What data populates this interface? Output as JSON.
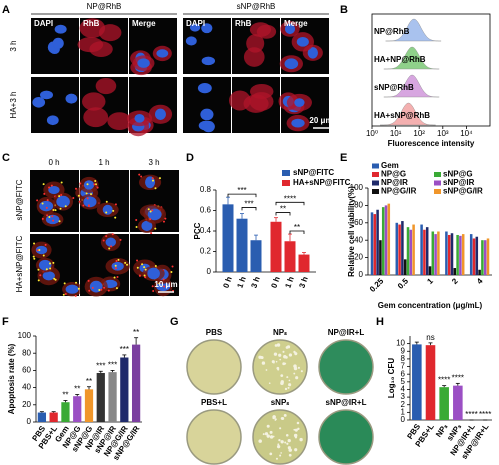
{
  "panel_labels": [
    "A",
    "B",
    "C",
    "D",
    "E",
    "F",
    "G",
    "H"
  ],
  "panel_a": {
    "groups": [
      "NP@RhB",
      "sNP@RhB"
    ],
    "channels": [
      "DAPI",
      "RhB",
      "Merge"
    ],
    "rows": [
      "3 h",
      "HA+3 h"
    ],
    "scale_bar": "20 μm"
  },
  "panel_c": {
    "columns": [
      "0 h",
      "1 h",
      "3 h"
    ],
    "rows": [
      "sNP@FITC",
      "HA+sNP@FITC"
    ],
    "scale_bar": "10 μm"
  },
  "panel_g": {
    "plates": [
      "PBS",
      "NPₛ",
      "NP@IR+L",
      "PBS+L",
      "sNPₛ",
      "sNP@IR+L"
    ]
  },
  "chart_data": [
    {
      "type": "ridge",
      "xlabel": "Fluorescence intensity",
      "log_x": true,
      "xlim": [
        1,
        100000
      ],
      "xticks": [
        {
          "value": 1,
          "label": "10⁰"
        },
        {
          "value": 10,
          "label": "10¹"
        },
        {
          "value": 100,
          "label": "10²"
        },
        {
          "value": 1000,
          "label": "10³"
        },
        {
          "value": 10000,
          "label": "10⁴"
        }
      ],
      "series": [
        {
          "name": "NP@RhB",
          "color": "#a9c2ee",
          "peak": 60
        },
        {
          "name": "HA+NP@RhB",
          "color": "#8fd18a",
          "peak": 50
        },
        {
          "name": "sNP@RhB",
          "color": "#d7a6e0",
          "peak": 50
        },
        {
          "name": "HA+sNP@RhB",
          "color": "#f4b0b0",
          "peak": 35
        }
      ]
    },
    {
      "type": "bar",
      "ylabel": "PCC",
      "ylim": [
        0,
        0.8
      ],
      "yticks": [
        0,
        0.2,
        0.4,
        0.6,
        0.8
      ],
      "categories": [
        "0 h",
        "1 h",
        "3 h"
      ],
      "series": [
        {
          "name": "sNP@FITC",
          "color": "#2a5db0",
          "values": [
            0.66,
            0.52,
            0.31
          ],
          "errors": [
            0.07,
            0.05,
            0.05
          ]
        },
        {
          "name": "HA+sNP@FITC",
          "color": "#e0282e",
          "values": [
            0.49,
            0.3,
            0.17
          ],
          "errors": [
            0.04,
            0.07,
            0.02
          ]
        }
      ],
      "annotations": [
        "***",
        "***",
        "****",
        "**",
        "**"
      ]
    },
    {
      "type": "bar",
      "xlabel": "Gem concentration (μg/mL)",
      "ylabel": "Relative cell viability(%)",
      "ylim": [
        0,
        100
      ],
      "yticks": [
        0,
        20,
        40,
        60,
        80,
        100
      ],
      "categories": [
        "0.25",
        "0.5",
        "1",
        "2",
        "4"
      ],
      "series": [
        {
          "name": "Gem",
          "color": "#2a5db0",
          "values": [
            72,
            60,
            58,
            50,
            47
          ]
        },
        {
          "name": "NP@G",
          "color": "#e0282e",
          "values": [
            70,
            58,
            52,
            46,
            42
          ]
        },
        {
          "name": "NP@IR",
          "color": "#1f2a6b",
          "values": [
            75,
            62,
            55,
            48,
            44
          ]
        },
        {
          "name": "NP@G/IR",
          "color": "#111111",
          "values": [
            40,
            18,
            10,
            8,
            6
          ]
        },
        {
          "name": "sNP@G",
          "color": "#3aaa35",
          "values": [
            78,
            55,
            50,
            46,
            40
          ]
        },
        {
          "name": "sNP@IR",
          "color": "#9b4fc4",
          "values": [
            80,
            52,
            47,
            45,
            40
          ]
        },
        {
          "name": "sNP@G/IR",
          "color": "#f0962a",
          "values": [
            82,
            58,
            50,
            47,
            42
          ]
        }
      ]
    },
    {
      "type": "bar",
      "ylabel": "Apoptosis rate (%)",
      "ylim": [
        0,
        100
      ],
      "yticks": [
        0,
        20,
        40,
        60,
        80,
        100
      ],
      "categories": [
        "PBS",
        "PBS+L",
        "Gem",
        "NP@G",
        "sNP@G",
        "NP@IR",
        "sNP@IR",
        "NP@G/IR",
        "sNP@G/IR"
      ],
      "values": [
        11,
        11,
        23,
        30,
        38,
        57,
        58,
        75,
        90
      ],
      "errors": [
        1,
        1,
        2,
        2,
        3,
        2,
        2,
        3,
        8
      ],
      "colors": [
        "#2a5db0",
        "#e0282e",
        "#3aaa35",
        "#9b4fc4",
        "#f0962a",
        "#333333",
        "#888888",
        "#1f2a6b",
        "#7b3fa0"
      ],
      "annotations": [
        null,
        null,
        "**",
        "**",
        "**",
        "***",
        "***",
        "***",
        "**"
      ]
    },
    {
      "type": "bar",
      "ylabel": "Log₁₀ CFU",
      "ylim": [
        0,
        11
      ],
      "yticks": [
        0,
        1,
        2,
        3,
        4,
        5,
        6,
        7,
        8,
        9,
        10
      ],
      "categories": [
        "PBS",
        "PBS+L",
        "NPₛ",
        "sNPₛ",
        "NP@IR+L",
        "sNP@IR+L"
      ],
      "values": [
        9.9,
        9.8,
        4.3,
        4.5,
        0,
        0
      ],
      "errors": [
        0.3,
        0.3,
        0.2,
        0.3,
        0,
        0
      ],
      "colors": [
        "#2a5db0",
        "#e0282e",
        "#3aaa35",
        "#9b4fc4",
        "#2a5db0",
        "#e0282e"
      ],
      "annotations": [
        null,
        "ns",
        "****",
        "****",
        "****",
        "****"
      ]
    }
  ]
}
